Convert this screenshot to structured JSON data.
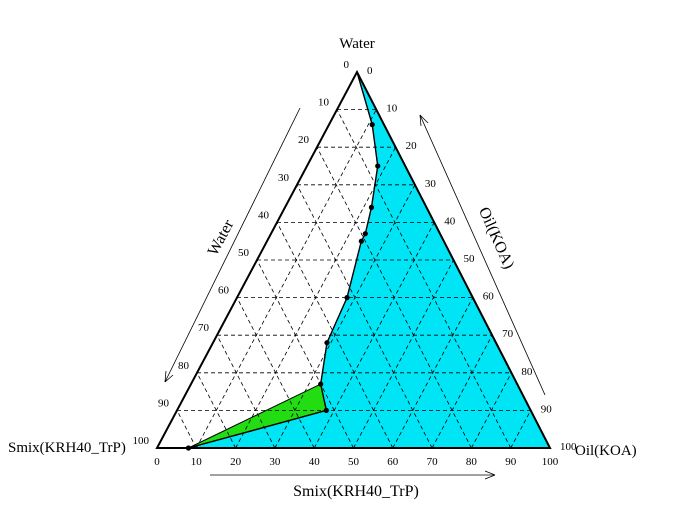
{
  "chart_data": {
    "type": "ternary",
    "vertices": {
      "top": "Water",
      "left": "Smix(KRH40_TrP)",
      "right": "Oil(KOA)"
    },
    "axes": {
      "water": {
        "label": "Water",
        "ticks": [
          0,
          10,
          20,
          30,
          40,
          50,
          60,
          70,
          80,
          90,
          100
        ]
      },
      "oil": {
        "label": "Oil(KOA)",
        "ticks": [
          100,
          90,
          80,
          70,
          60,
          50,
          40,
          30,
          20,
          10,
          0
        ]
      },
      "smix": {
        "label": "Smix(KRH40_TrP)",
        "ticks": [
          0,
          10,
          20,
          30,
          40,
          50,
          60,
          70,
          80,
          90,
          100
        ]
      }
    },
    "grid": true,
    "colors": {
      "cyan_region": "#00e5f5",
      "green_region": "#22dd11",
      "boundary": "#000000"
    },
    "boundary_points": [
      {
        "smix": 0,
        "oil": 0,
        "water": 100
      },
      {
        "smix": 3,
        "oil": 11,
        "water": 86
      },
      {
        "smix": 7,
        "oil": 18,
        "water": 75
      },
      {
        "smix": 14,
        "oil": 22,
        "water": 64
      },
      {
        "smix": 19,
        "oil": 24,
        "water": 57
      },
      {
        "smix": 21,
        "oil": 24,
        "water": 55
      },
      {
        "smix": 32,
        "oil": 28,
        "water": 40
      },
      {
        "smix": 43,
        "oil": 29,
        "water": 28
      },
      {
        "smix": 50,
        "oil": 33,
        "water": 17
      },
      {
        "smix": 52,
        "oil": 38,
        "water": 10
      },
      {
        "smix": 92,
        "oil": 8,
        "water": 0
      }
    ],
    "green_region": [
      {
        "smix": 92,
        "oil": 8,
        "water": 0
      },
      {
        "smix": 50,
        "oil": 33,
        "water": 17
      },
      {
        "smix": 52,
        "oil": 38,
        "water": 10
      }
    ]
  }
}
